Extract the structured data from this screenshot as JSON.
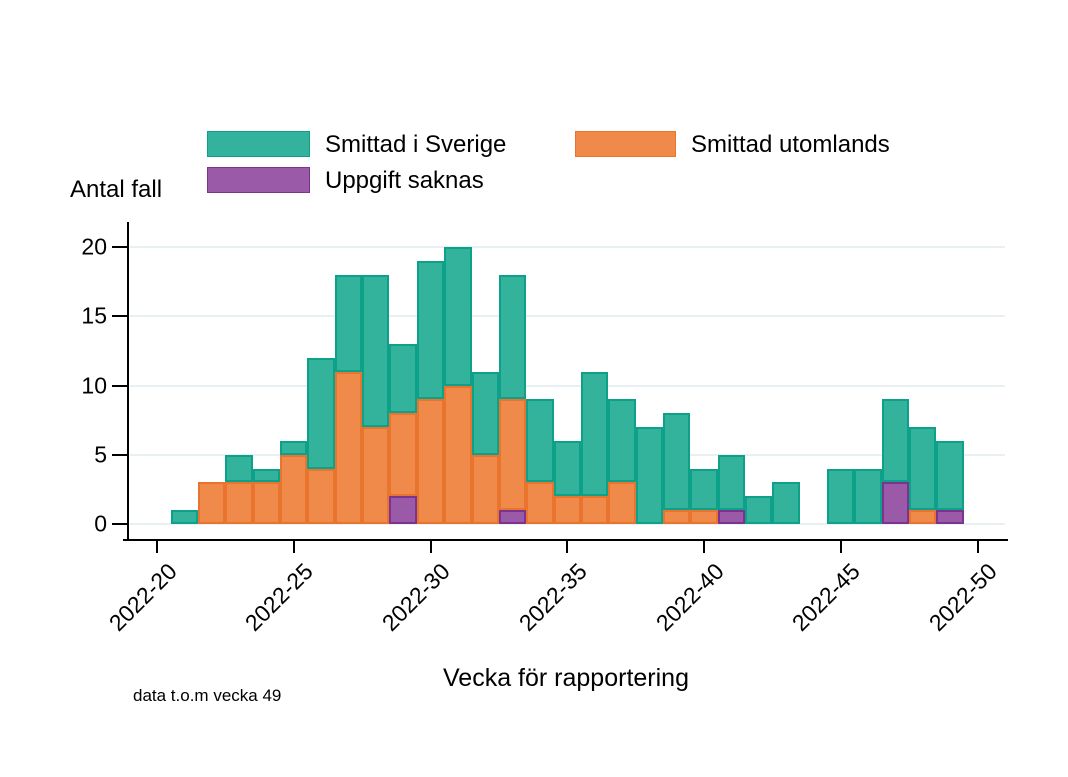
{
  "chart_data": {
    "type": "bar",
    "stacked": true,
    "title": "",
    "ylabel": "Antal fall",
    "xlabel": "Vecka för rapportering",
    "footnote": "data t.o.m vecka 49",
    "ylim": [
      0,
      20
    ],
    "yticks": [
      0,
      5,
      10,
      15,
      20
    ],
    "xticks": [
      "2022-20",
      "2022-25",
      "2022-30",
      "2022-35",
      "2022-40",
      "2022-45",
      "2022-50"
    ],
    "grid": "horizontal",
    "grid_color": "#e9f0f4",
    "axis_color": "#000000",
    "legend_position": "top",
    "stack_order_bottom_to_top": [
      "Uppgift saknas",
      "Smittad utomlands",
      "Smittad i Sverige"
    ],
    "categories": [
      "2022-21",
      "2022-22",
      "2022-23",
      "2022-24",
      "2022-25",
      "2022-26",
      "2022-27",
      "2022-28",
      "2022-29",
      "2022-30",
      "2022-31",
      "2022-32",
      "2022-33",
      "2022-34",
      "2022-35",
      "2022-36",
      "2022-37",
      "2022-38",
      "2022-39",
      "2022-40",
      "2022-41",
      "2022-42",
      "2022-43",
      "2022-44",
      "2022-45",
      "2022-46",
      "2022-47",
      "2022-48",
      "2022-49"
    ],
    "series": [
      {
        "name": "Smittad i Sverige",
        "color": "#33b29c",
        "border_color": "#0ca188",
        "values": [
          1,
          0,
          2,
          1,
          1,
          8,
          7,
          11,
          5,
          10,
          10,
          6,
          9,
          6,
          4,
          9,
          6,
          7,
          7,
          3,
          4,
          2,
          3,
          0,
          4,
          4,
          6,
          6,
          5
        ]
      },
      {
        "name": "Smittad utomlands",
        "color": "#f08a4b",
        "border_color": "#e8742e",
        "values": [
          0,
          3,
          3,
          3,
          5,
          4,
          11,
          7,
          6,
          9,
          10,
          5,
          8,
          3,
          2,
          2,
          3,
          0,
          1,
          1,
          0,
          0,
          0,
          0,
          0,
          0,
          0,
          1,
          0
        ]
      },
      {
        "name": "Uppgift saknas",
        "color": "#9a5aa8",
        "border_color": "#7c3390",
        "values": [
          0,
          0,
          0,
          0,
          0,
          0,
          0,
          0,
          2,
          0,
          0,
          0,
          1,
          0,
          0,
          0,
          0,
          0,
          0,
          0,
          1,
          0,
          0,
          0,
          0,
          0,
          3,
          0,
          1
        ]
      }
    ]
  }
}
